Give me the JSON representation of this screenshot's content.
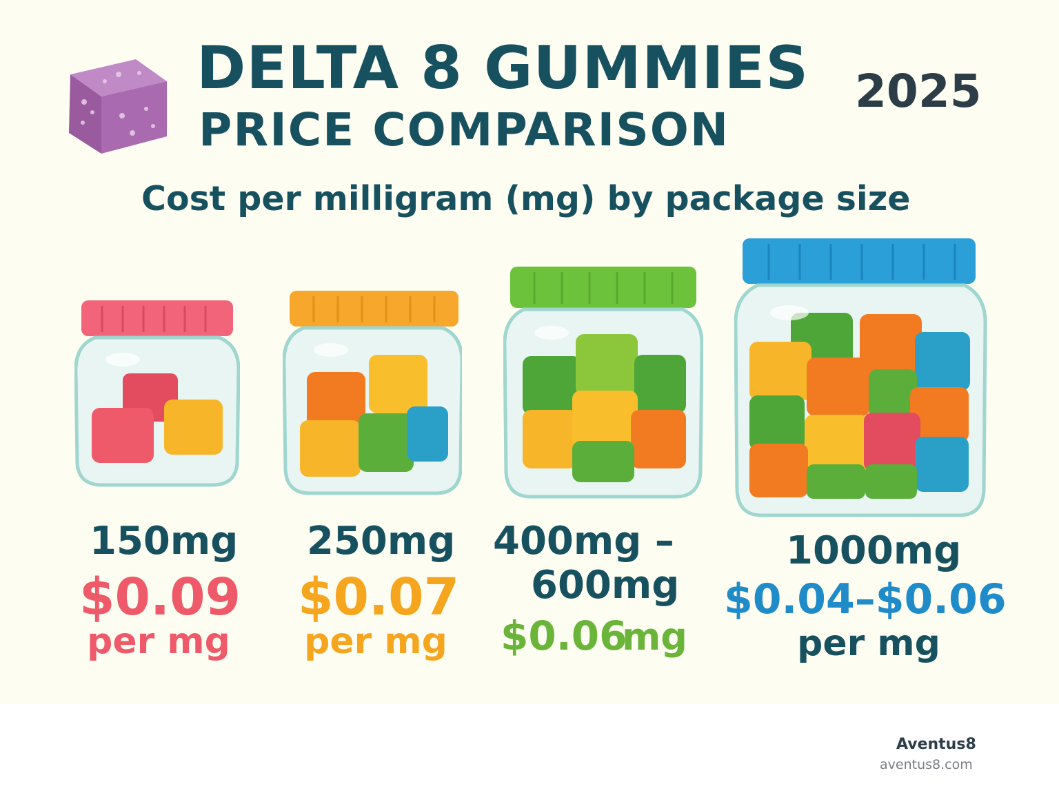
{
  "header": {
    "title_line1": "DELTA 8 GUMMIES",
    "title_line2": "PRICE COMPARISON",
    "year": "2025",
    "subtitle": "Cost per milligram (mg) by package size"
  },
  "colors": {
    "background": "#fdfdf2",
    "title": "#17515f",
    "red": "#ee5a6a",
    "orange": "#f6a51e",
    "green": "#6ab43a",
    "blue": "#1f8bc8",
    "lid_red": "#f2647a",
    "lid_orange": "#f7a72b",
    "lid_green": "#6cc33b",
    "lid_blue": "#2a9fd8"
  },
  "icons": [
    "purple-gummy-icon",
    "gummy-jar-icon"
  ],
  "packages": [
    {
      "size": "150mg",
      "price": "$0.09",
      "unit": "per mg"
    },
    {
      "size": "250mg",
      "price": "$0.07",
      "unit": "per mg"
    },
    {
      "size_line1": "400mg –",
      "size_line2": "600mg",
      "price": "$0.06",
      "unit": "mg"
    },
    {
      "size": "1000mg",
      "price": "$0.04–$0.06",
      "unit": "per mg"
    }
  ],
  "footer": {
    "brand": "Aventus8",
    "website": "aventus8.com"
  }
}
